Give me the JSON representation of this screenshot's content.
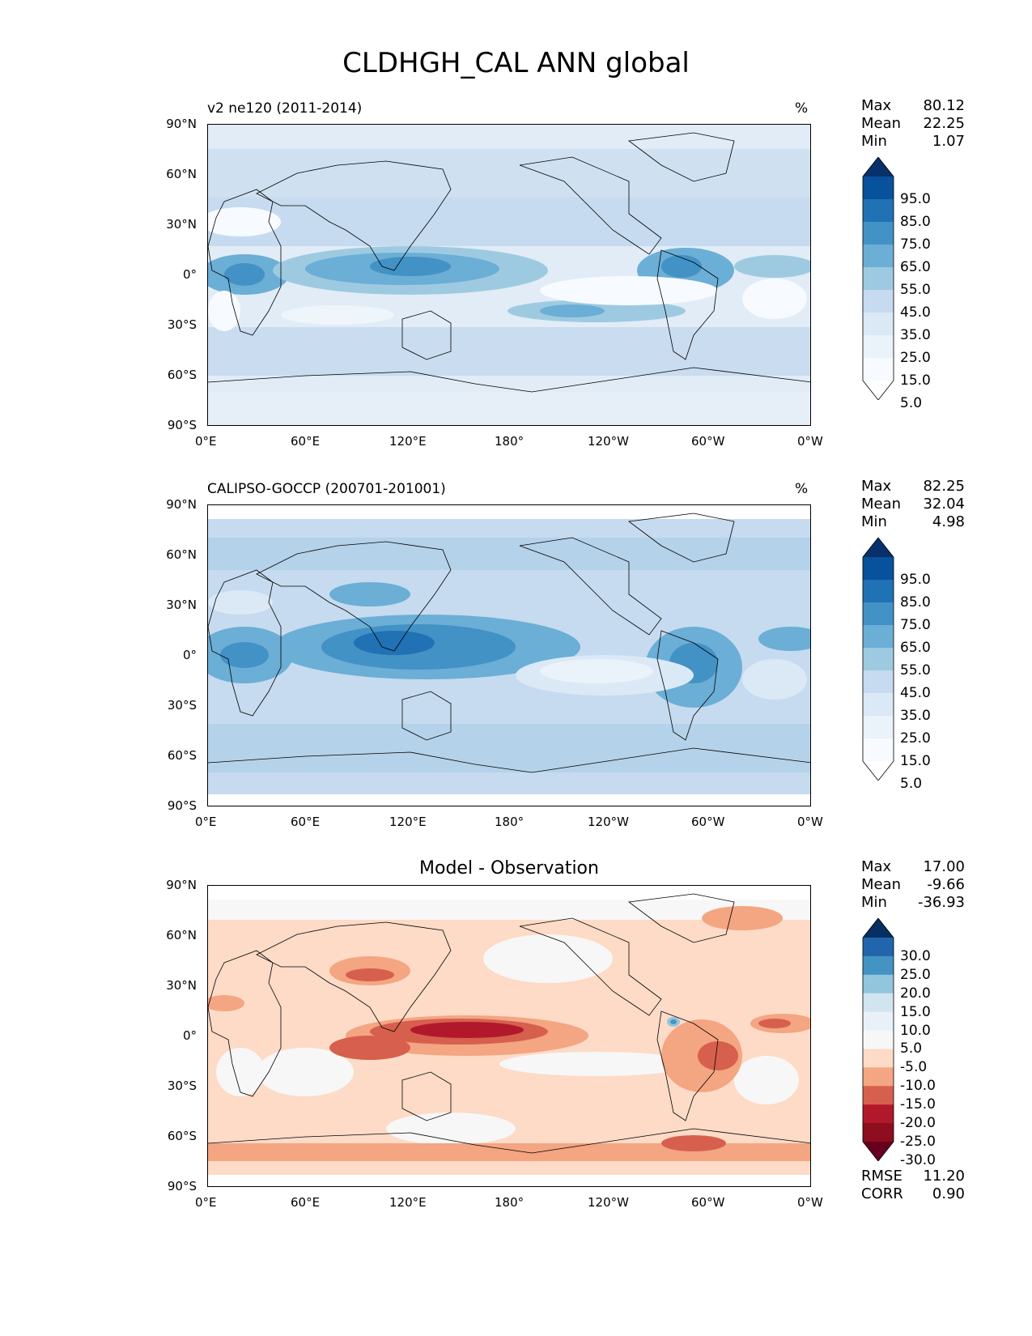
{
  "figure_title": "CLDHGH_CAL ANN global",
  "x_ticks": [
    "0°E",
    "60°E",
    "120°E",
    "180°",
    "120°W",
    "60°W",
    "0°W"
  ],
  "y_ticks": [
    "90°N",
    "60°N",
    "30°N",
    "0°",
    "30°S",
    "60°S",
    "90°S"
  ],
  "panels": [
    {
      "title": "v2 ne120 (2011-2014)",
      "units": "%",
      "stats": [
        {
          "label": "Max",
          "value": "80.12"
        },
        {
          "label": "Mean",
          "value": "22.25"
        },
        {
          "label": "Min",
          "value": "1.07"
        }
      ],
      "colorbar_labels": [
        "95.0",
        "85.0",
        "75.0",
        "65.0",
        "55.0",
        "45.0",
        "35.0",
        "25.0",
        "15.0",
        "5.0"
      ],
      "colorbar_colors": [
        "#08306b",
        "#08519c",
        "#2171b5",
        "#4292c6",
        "#6baed6",
        "#9ecae1",
        "#c6dbef",
        "#dbe9f6",
        "#eaf2fa",
        "#f7fbff",
        "#ffffff"
      ]
    },
    {
      "title": "CALIPSO-GOCCP (200701-201001)",
      "units": "%",
      "stats": [
        {
          "label": "Max",
          "value": "82.25"
        },
        {
          "label": "Mean",
          "value": "32.04"
        },
        {
          "label": "Min",
          "value": "4.98"
        }
      ],
      "colorbar_labels": [
        "95.0",
        "85.0",
        "75.0",
        "65.0",
        "55.0",
        "45.0",
        "35.0",
        "25.0",
        "15.0",
        "5.0"
      ],
      "colorbar_colors": [
        "#08306b",
        "#08519c",
        "#2171b5",
        "#4292c6",
        "#6baed6",
        "#9ecae1",
        "#c6dbef",
        "#dbe9f6",
        "#eaf2fa",
        "#f7fbff",
        "#ffffff"
      ]
    },
    {
      "title": "Model - Observation",
      "units": "",
      "stats": [
        {
          "label": "Max",
          "value": "17.00"
        },
        {
          "label": "Mean",
          "value": "-9.66"
        },
        {
          "label": "Min",
          "value": "-36.93"
        }
      ],
      "extra_stats": [
        {
          "label": "RMSE",
          "value": "11.20"
        },
        {
          "label": "CORR",
          "value": "0.90"
        }
      ],
      "colorbar_labels": [
        "30.0",
        "25.0",
        "20.0",
        "15.0",
        "10.0",
        "5.0",
        "-5.0",
        "-10.0",
        "-15.0",
        "-20.0",
        "-25.0",
        "-30.0"
      ],
      "colorbar_colors": [
        "#053061",
        "#2166ac",
        "#4393c3",
        "#92c5de",
        "#d1e5f0",
        "#e8f1f7",
        "#f7f7f7",
        "#fddbc7",
        "#f4a582",
        "#d6604d",
        "#b2182b",
        "#8e0d1f",
        "#67001f"
      ]
    }
  ]
}
